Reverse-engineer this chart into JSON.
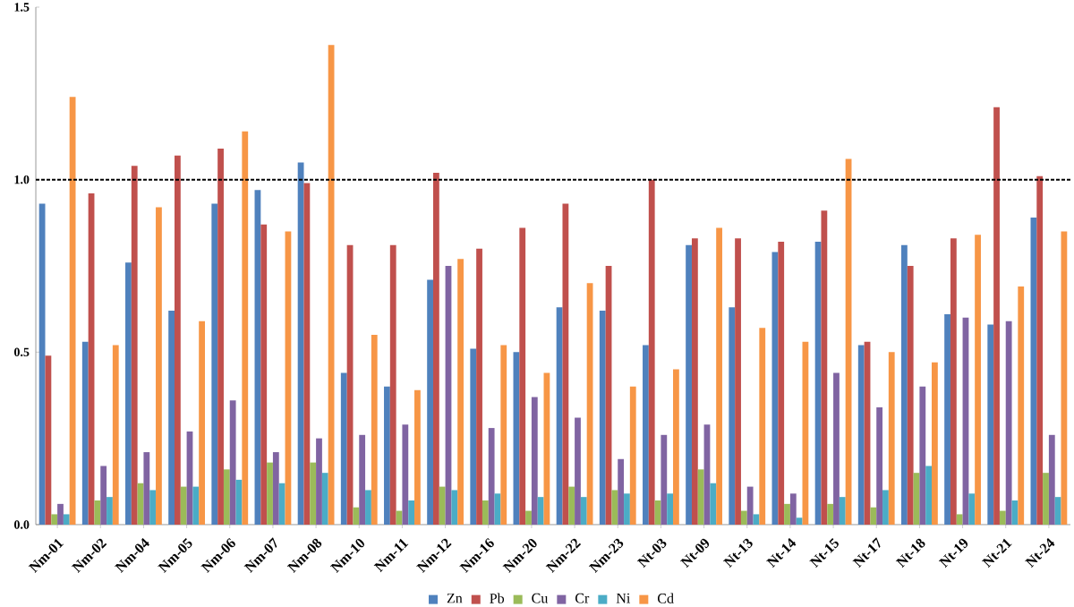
{
  "chart_data": {
    "type": "bar",
    "categories": [
      "Nm-01",
      "Nm-02",
      "Nm-04",
      "Nm-05",
      "Nm-06",
      "Nm-07",
      "Nm-08",
      "Nm-10",
      "Nm-11",
      "Nm-12",
      "Nm-16",
      "Nm-20",
      "Nm-22",
      "Nm-23",
      "Nt-03",
      "Nt-09",
      "Nt-13",
      "Nt-14",
      "Nt-15",
      "Nt-17",
      "Nt-18",
      "Nt-19",
      "Nt-21",
      "Nt-24"
    ],
    "series": [
      {
        "name": "Zn",
        "color": "#4f81bd",
        "values": [
          0.93,
          0.53,
          0.76,
          0.62,
          0.93,
          0.97,
          1.05,
          0.44,
          0.4,
          0.71,
          0.51,
          0.5,
          0.63,
          0.62,
          0.52,
          0.81,
          0.63,
          0.79,
          0.82,
          0.52,
          0.81,
          0.61,
          0.58,
          0.89
        ]
      },
      {
        "name": "Pb",
        "color": "#c0504d",
        "values": [
          0.49,
          0.96,
          1.04,
          1.07,
          1.09,
          0.87,
          0.99,
          0.81,
          0.81,
          1.02,
          0.8,
          0.86,
          0.93,
          0.75,
          1.0,
          0.83,
          0.83,
          0.82,
          0.91,
          0.53,
          0.75,
          0.83,
          1.21,
          1.01
        ]
      },
      {
        "name": "Cu",
        "color": "#9bbb59",
        "values": [
          0.03,
          0.07,
          0.12,
          0.11,
          0.16,
          0.18,
          0.18,
          0.05,
          0.04,
          0.11,
          0.07,
          0.04,
          0.11,
          0.1,
          0.07,
          0.16,
          0.04,
          0.06,
          0.06,
          0.05,
          0.15,
          0.03,
          0.04,
          0.15
        ]
      },
      {
        "name": "Cr",
        "color": "#8064a2",
        "values": [
          0.06,
          0.17,
          0.21,
          0.27,
          0.36,
          0.21,
          0.25,
          0.26,
          0.29,
          0.75,
          0.28,
          0.37,
          0.31,
          0.19,
          0.26,
          0.29,
          0.11,
          0.09,
          0.44,
          0.34,
          0.4,
          0.6,
          0.59,
          0.26
        ]
      },
      {
        "name": "Ni",
        "color": "#4bacc6",
        "values": [
          0.03,
          0.08,
          0.1,
          0.11,
          0.13,
          0.12,
          0.15,
          0.1,
          0.07,
          0.1,
          0.09,
          0.08,
          0.08,
          0.09,
          0.09,
          0.12,
          0.03,
          0.02,
          0.08,
          0.1,
          0.17,
          0.09,
          0.07,
          0.08
        ]
      },
      {
        "name": "Cd",
        "color": "#f79646",
        "values": [
          1.24,
          0.52,
          0.92,
          0.59,
          1.14,
          0.85,
          1.39,
          0.55,
          0.39,
          0.77,
          0.52,
          0.44,
          0.7,
          0.4,
          0.45,
          0.86,
          0.57,
          0.53,
          1.06,
          0.5,
          0.47,
          0.84,
          0.69,
          0.85
        ]
      }
    ],
    "ylim": [
      0,
      1.5
    ],
    "yticks": [
      {
        "value": 0,
        "label": "0.0"
      },
      {
        "value": 0.5,
        "label": "0.5"
      },
      {
        "value": 1.0,
        "label": "1.0"
      },
      {
        "value": 1.5,
        "label": "1.5"
      }
    ],
    "ref_lines": [
      {
        "axis": "y",
        "value": 1.0,
        "color": "#000000",
        "line_style": "dashed"
      }
    ],
    "grid": false,
    "legend": "bottom"
  }
}
